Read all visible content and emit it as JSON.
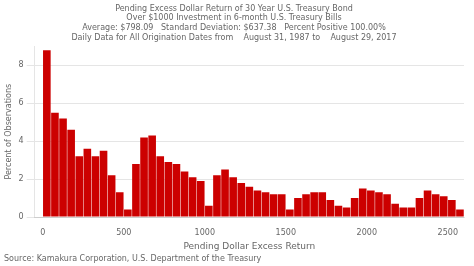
{
  "chart_data": {
    "type": "histogram",
    "title": [
      "Pending Excess Dollar Return of 30 Year U.S. Treasury Bond",
      "Over $1000 Investment in 6-month U.S. Treasury Bills",
      "Average: $798.09   Standard Deviation: $637.38   Percent Positive 100.00%",
      "Daily Data for All Origination Dates from    August 31, 1987 to    August 29, 2017"
    ],
    "x_label": "Pending Dollar Excess Return",
    "y_label": "Percent of Observations",
    "annotations": [
      "Source: Kamakura Corporation, U.S. Department of the Treasury"
    ],
    "bins": [
      0,
      50,
      100,
      150,
      200,
      250,
      300,
      350,
      400,
      450,
      500,
      550,
      600,
      650,
      700,
      750,
      800,
      850,
      900,
      950,
      1000,
      1050,
      1100,
      1150,
      1200,
      1250,
      1300,
      1350,
      1400,
      1450,
      1500,
      1550,
      1600,
      1650,
      1700,
      1750,
      1800,
      1850,
      1900,
      1950,
      2000,
      2050,
      2100,
      2150,
      2200,
      2250,
      2300,
      2350,
      2400,
      2450,
      2500,
      2550,
      2600
    ],
    "values": [
      8.8,
      5.5,
      5.2,
      4.6,
      3.2,
      3.6,
      3.2,
      3.5,
      2.2,
      1.3,
      0.4,
      2.8,
      4.2,
      4.3,
      3.2,
      2.9,
      2.8,
      2.4,
      2.1,
      1.9,
      0.6,
      2.2,
      2.5,
      2.1,
      1.8,
      1.6,
      1.4,
      1.3,
      1.2,
      1.2,
      0.4,
      1.0,
      1.2,
      1.3,
      1.3,
      0.9,
      0.6,
      0.5,
      1.0,
      1.5,
      1.4,
      1.3,
      1.2,
      0.7,
      0.5,
      0.5,
      1.0,
      1.4,
      1.2,
      1.1,
      0.9,
      0.4
    ],
    "color": "#cc0000",
    "xlim": [
      -50,
      2600
    ],
    "ylim": [
      0,
      9
    ],
    "xticks": [
      0,
      500,
      1000,
      1500,
      2000,
      2500
    ],
    "yticks": [
      0,
      2,
      4,
      6,
      8
    ],
    "grid": "y"
  }
}
